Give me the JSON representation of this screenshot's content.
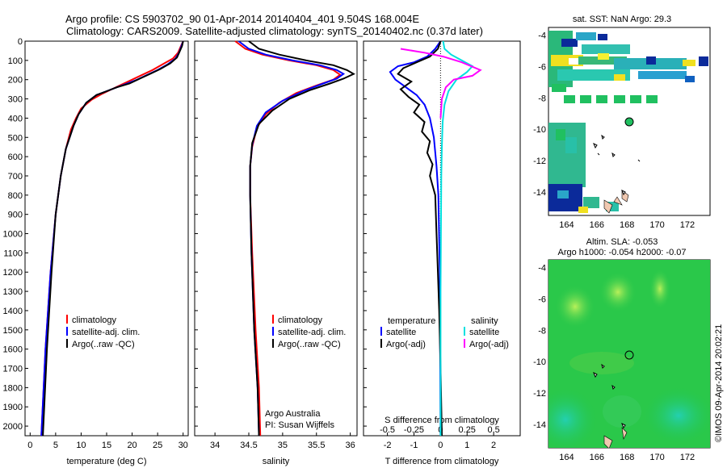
{
  "header": {
    "line1": "Argo profile: CS 5903702_90 01-Apr-2014 20140404_401 9.504S 168.004E",
    "line2": "Climatology: CARS2009. Satellite-adjusted climatology: synTS_20140402.nc (0.37d later)"
  },
  "chart_data": [
    {
      "id": "temperature",
      "type": "line",
      "xlabel": "temperature (deg C)",
      "ylabel": "",
      "xlim": [
        -1,
        31
      ],
      "ylim": [
        2050,
        0
      ],
      "xticks": [
        0,
        5,
        10,
        15,
        20,
        25,
        30
      ],
      "yticks": [
        0,
        100,
        200,
        300,
        400,
        500,
        600,
        700,
        800,
        900,
        1000,
        1100,
        1200,
        1300,
        1400,
        1500,
        1600,
        1700,
        1800,
        1900,
        2000
      ],
      "legend": [
        "climatology",
        "satellite-adj. clim.",
        "Argo(..raw -QC)"
      ],
      "series": [
        {
          "name": "climatology",
          "color": "#ff0000",
          "x": [
            30,
            29.5,
            29,
            28,
            26,
            24,
            22,
            20,
            18,
            16,
            14,
            12,
            10,
            9,
            8,
            7,
            6,
            5,
            4,
            3,
            2.2
          ],
          "y": [
            0,
            30,
            60,
            90,
            120,
            150,
            175,
            200,
            225,
            250,
            275,
            305,
            350,
            400,
            460,
            560,
            700,
            900,
            1200,
            1600,
            2050
          ]
        },
        {
          "name": "satellite-adj. clim.",
          "color": "#0000ff",
          "x": [
            30,
            29.6,
            29.2,
            28.5,
            27,
            25,
            23,
            21,
            19,
            17,
            15,
            13,
            11,
            9.5,
            8.5,
            7,
            6,
            5,
            4,
            3,
            2.2
          ],
          "y": [
            0,
            30,
            60,
            90,
            120,
            150,
            175,
            200,
            220,
            240,
            260,
            280,
            320,
            380,
            440,
            560,
            700,
            900,
            1200,
            1600,
            2050
          ]
        },
        {
          "name": "Argo(..raw -QC)",
          "color": "#000000",
          "x": [
            30,
            29.8,
            29.3,
            28.8,
            27.5,
            25.5,
            23.5,
            21.5,
            19.5,
            17,
            15,
            13,
            11,
            9.5,
            8.5,
            7,
            6,
            5,
            4.2,
            3.3,
            2.5
          ],
          "y": [
            0,
            25,
            55,
            85,
            115,
            145,
            170,
            195,
            220,
            240,
            260,
            280,
            320,
            380,
            440,
            560,
            700,
            900,
            1200,
            1600,
            2050
          ]
        }
      ]
    },
    {
      "id": "salinity",
      "type": "line",
      "xlabel": "salinity",
      "ylabel": "",
      "xlim": [
        33.7,
        36.1
      ],
      "ylim": [
        2050,
        0
      ],
      "xticks": [
        34,
        34.5,
        35,
        35.5,
        36
      ],
      "legend": [
        "climatology",
        "satellite-adj. clim.",
        "Argo(..raw -QC)"
      ],
      "annotation": [
        "Argo Australia",
        "PI: Susan Wijffels"
      ],
      "series": [
        {
          "name": "climatology",
          "color": "#ff0000",
          "x": [
            34.3,
            34.45,
            34.7,
            35.1,
            35.5,
            35.75,
            35.85,
            35.75,
            35.5,
            35.2,
            34.95,
            34.75,
            34.62,
            34.55,
            34.52,
            34.52,
            34.55,
            34.6,
            34.65,
            34.67
          ],
          "y": [
            0,
            40,
            70,
            100,
            125,
            150,
            175,
            200,
            230,
            270,
            320,
            380,
            450,
            550,
            650,
            800,
            1100,
            1500,
            1800,
            2050
          ]
        },
        {
          "name": "satellite-adj. clim.",
          "color": "#0000ff",
          "x": [
            34.35,
            34.5,
            34.75,
            35.15,
            35.55,
            35.8,
            35.9,
            35.8,
            35.6,
            35.3,
            35.0,
            34.75,
            34.62,
            34.55,
            34.52,
            34.52,
            34.54,
            34.58,
            34.63,
            34.65
          ],
          "y": [
            0,
            40,
            70,
            100,
            125,
            150,
            170,
            195,
            220,
            260,
            310,
            370,
            440,
            540,
            650,
            800,
            1100,
            1500,
            1800,
            2050
          ]
        },
        {
          "name": "Argo(..raw -QC)",
          "color": "#000000",
          "x": [
            34.5,
            34.65,
            34.95,
            35.35,
            35.75,
            35.95,
            36.05,
            35.9,
            35.7,
            35.4,
            35.1,
            34.85,
            34.65,
            34.55,
            34.52,
            34.52,
            34.54,
            34.58,
            34.63,
            34.65
          ],
          "y": [
            0,
            40,
            70,
            100,
            125,
            150,
            170,
            195,
            220,
            255,
            300,
            360,
            430,
            530,
            650,
            800,
            1100,
            1500,
            1800,
            2050
          ]
        }
      ]
    },
    {
      "id": "difference",
      "type": "line",
      "xlabel": "T difference from climatology",
      "xlabel2": "S difference from climatology",
      "xlim": [
        -2.9,
        3.0
      ],
      "ylim": [
        2050,
        0
      ],
      "xticks": [
        -2,
        -1,
        0,
        1,
        2
      ],
      "xticks_s": [
        -0.5,
        -0.25,
        0,
        0.25,
        0.5
      ],
      "legend_t_title": "temperature",
      "legend_s_title": "salinity",
      "legend": [
        "satellite",
        "Argo(-adj)",
        "satellite",
        "Argo(-adj)"
      ],
      "series": [
        {
          "name": "T satellite",
          "color": "#0000ff",
          "x": [
            0,
            -0.2,
            -0.5,
            -1.0,
            -1.6,
            -1.9,
            -1.7,
            -1.3,
            -0.9,
            -0.6,
            -0.4,
            -0.25,
            -0.15,
            -0.08,
            -0.03,
            0
          ],
          "y": [
            0,
            40,
            80,
            110,
            130,
            160,
            200,
            240,
            280,
            330,
            400,
            500,
            650,
            800,
            1200,
            2050
          ]
        },
        {
          "name": "T Argo(-adj)",
          "color": "#000000",
          "x": [
            0,
            -0.1,
            -0.4,
            -0.9,
            -1.4,
            -1.6,
            -1.1,
            -1.5,
            -1.2,
            -0.8,
            -1.0,
            -0.6,
            -0.7,
            -0.4,
            -0.5,
            -0.3,
            -0.4,
            -0.2,
            -0.15,
            -0.1,
            -0.05,
            0,
            0.05
          ],
          "y": [
            0,
            40,
            80,
            110,
            140,
            170,
            210,
            250,
            290,
            330,
            370,
            420,
            470,
            520,
            580,
            640,
            700,
            800,
            1000,
            1200,
            1400,
            1700,
            2050
          ]
        },
        {
          "name": "S satellite",
          "color": "#00e0e0",
          "x": [
            0.1,
            0.15,
            0.4,
            0.8,
            1.2,
            1.0,
            0.6,
            0.3,
            0.15,
            0.08,
            0.05,
            0.03,
            0.02,
            0,
            0
          ],
          "y": [
            0,
            40,
            70,
            100,
            130,
            160,
            200,
            260,
            330,
            420,
            550,
            700,
            900,
            1300,
            2050
          ]
        },
        {
          "name": "S Argo(-adj)",
          "color": "#ff00ff",
          "x": [
            -1.5,
            -0.6,
            0.1,
            0.8,
            1.5,
            1.2,
            0.5,
            0.2,
            0.05,
            0
          ],
          "y": [
            40,
            60,
            80,
            110,
            150,
            180,
            200,
            240,
            300,
            400
          ]
        }
      ]
    },
    {
      "id": "sst_map",
      "type": "heatmap",
      "title": "sat. SST: NaN Argo: 29.3",
      "xticks": [
        164,
        166,
        168,
        170,
        172
      ],
      "yticks": [
        -4,
        -6,
        -8,
        -10,
        -12,
        -14
      ],
      "xlim": [
        162.8,
        173.5
      ],
      "ylim": [
        -15.5,
        -3.5
      ],
      "marker": {
        "lon": 168.0,
        "lat": -9.5
      }
    },
    {
      "id": "sla_map",
      "type": "heatmap",
      "title": "Altim. SLA: -0.053",
      "subtitle": "Argo h1000: -0.054 h2000: -0.07",
      "xticks": [
        164,
        166,
        168,
        170,
        172
      ],
      "yticks": [
        -4,
        -6,
        -8,
        -10,
        -12,
        -14
      ],
      "xlim": [
        162.8,
        173.5
      ],
      "ylim": [
        -15.5,
        -3.5
      ],
      "marker": {
        "lon": 168.0,
        "lat": -9.5
      },
      "side_label": "©IMOS 09-Apr-2014 20:02:21"
    }
  ]
}
